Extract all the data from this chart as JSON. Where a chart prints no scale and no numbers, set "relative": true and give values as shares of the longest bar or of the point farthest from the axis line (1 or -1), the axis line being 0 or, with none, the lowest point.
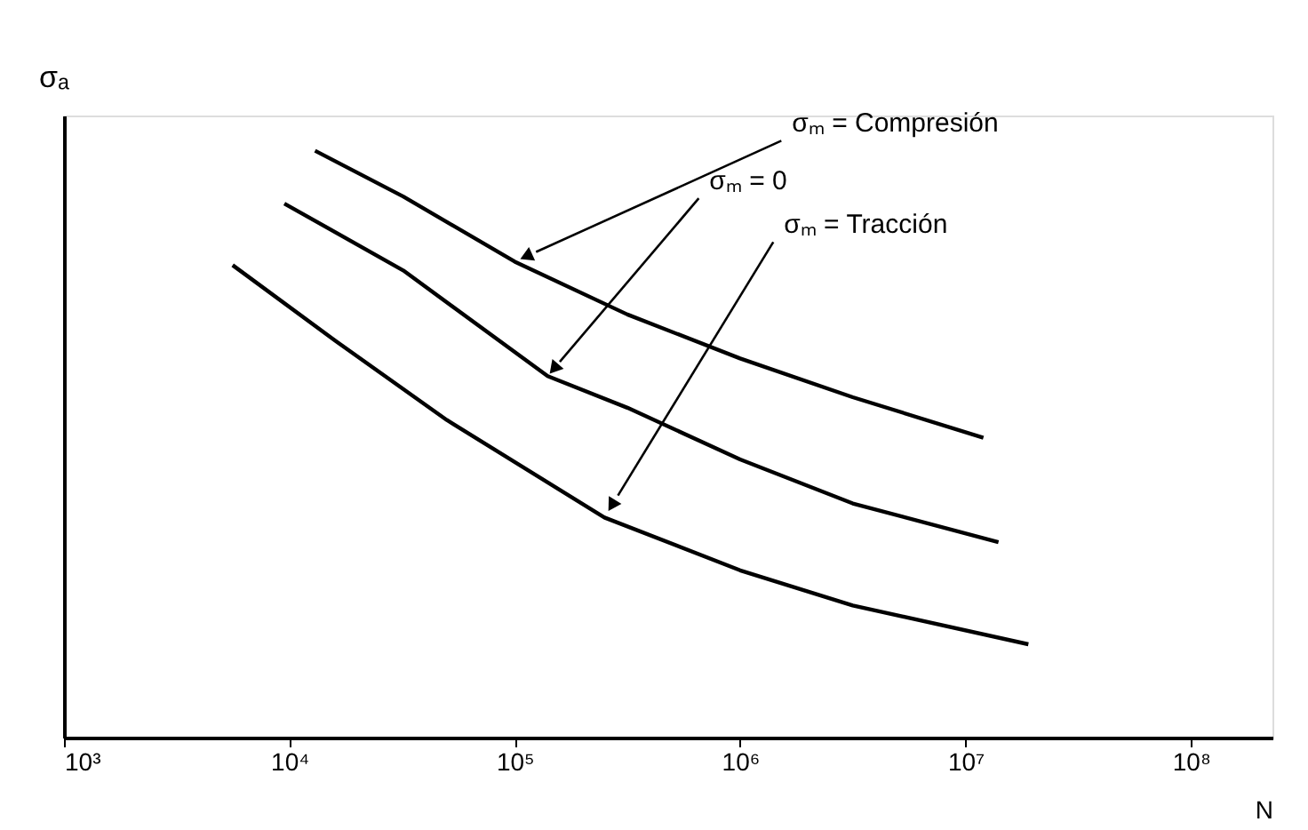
{
  "chart_data": {
    "type": "line",
    "relative": true,
    "log": "x",
    "ylabel": "σₐ",
    "xlabel": "N",
    "xlim": [
      1000,
      230000000
    ],
    "xticks": [
      {
        "value": 1000,
        "label": "10³"
      },
      {
        "value": 10000,
        "label": "10⁴"
      },
      {
        "value": 100000,
        "label": "10⁵"
      },
      {
        "value": 1000000,
        "label": "10⁶"
      },
      {
        "value": 10000000,
        "label": "10⁷"
      },
      {
        "value": 100000000,
        "label": "10⁸"
      }
    ],
    "grid": false,
    "legend": false,
    "marker": "none",
    "line_style": "solid",
    "tick_labels": "x",
    "series": [
      {
        "name": "σₘ = Compresión",
        "color": "#000000",
        "x": [
          13000,
          32000,
          100000,
          316000,
          1000000,
          3160000,
          12000000
        ],
        "values": [
          1.0,
          0.922,
          0.811,
          0.721,
          0.646,
          0.58,
          0.511
        ]
      },
      {
        "name": "σₘ = 0",
        "color": "#000000",
        "x": [
          9500,
          32000,
          140000,
          316000,
          1000000,
          3160000,
          14000000
        ],
        "values": [
          0.91,
          0.796,
          0.616,
          0.562,
          0.474,
          0.399,
          0.333
        ]
      },
      {
        "name": "σₘ = Tracción",
        "color": "#000000",
        "x": [
          5600,
          16000,
          50000,
          250000,
          1000000,
          3160000,
          19000000
        ],
        "values": [
          0.805,
          0.676,
          0.541,
          0.375,
          0.285,
          0.225,
          0.159
        ]
      }
    ]
  }
}
